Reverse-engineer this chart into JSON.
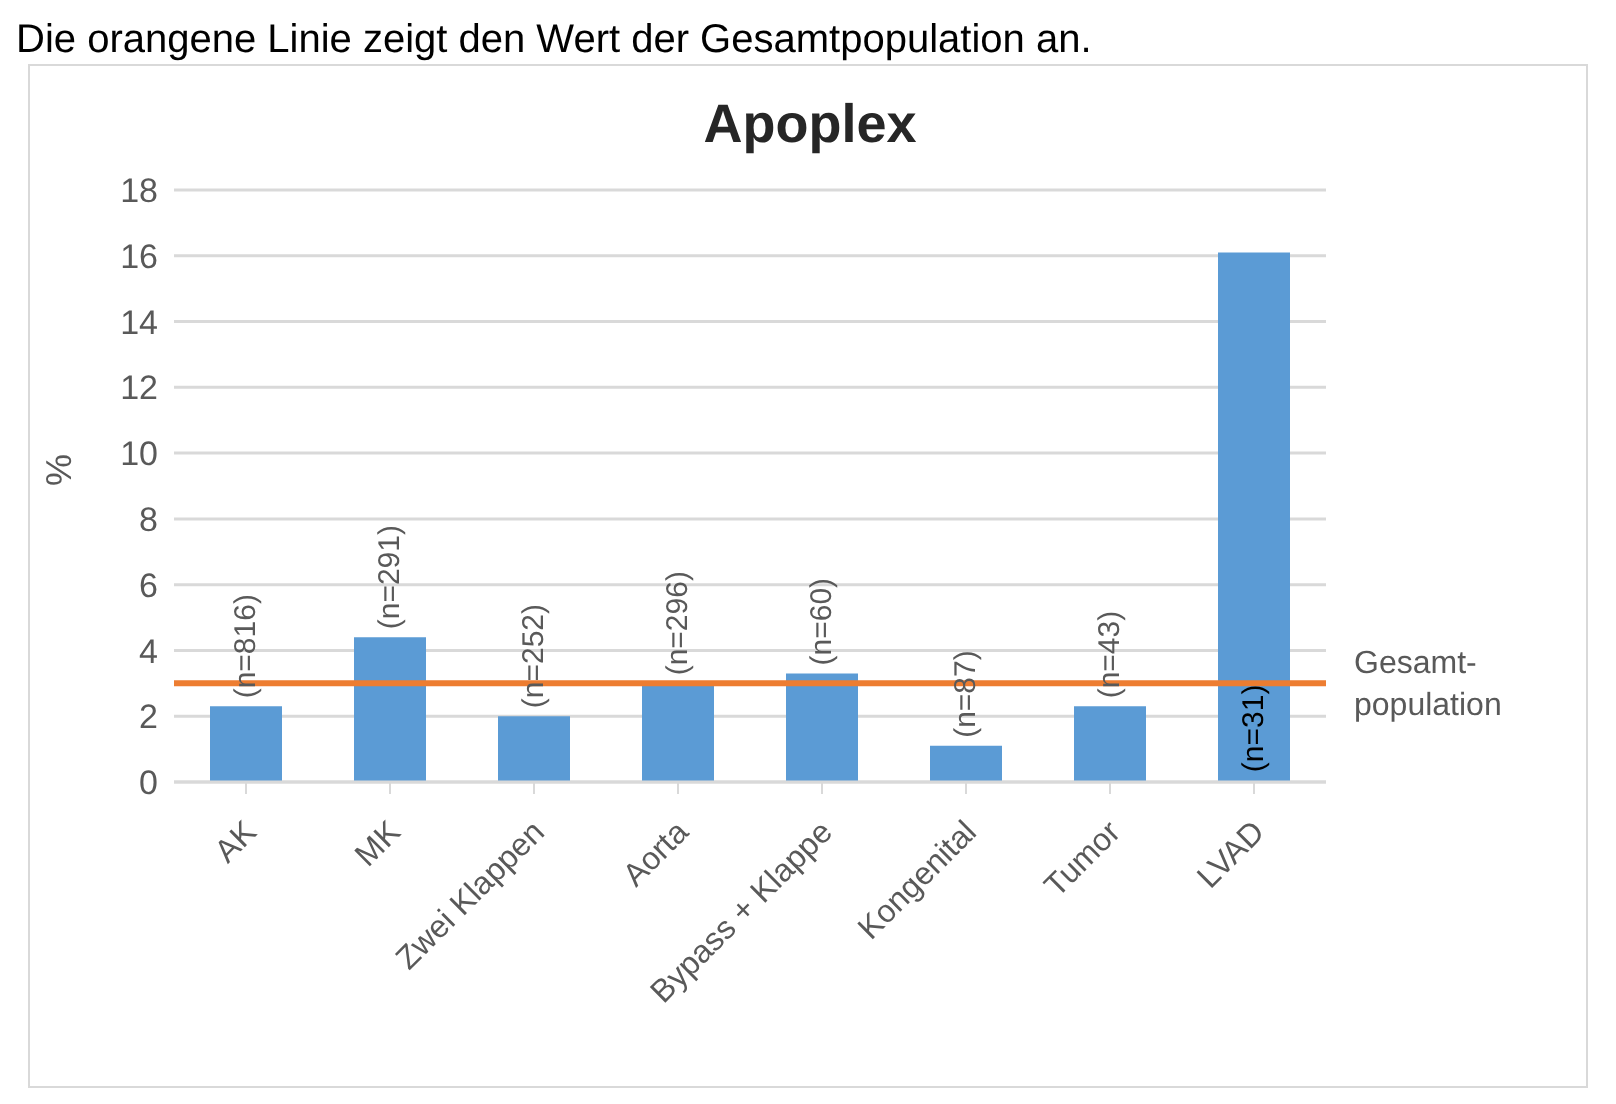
{
  "chart_data": {
    "type": "bar",
    "title": "Apoplex",
    "ylabel": "%",
    "annotations": [
      "Die orangene Linie zeigt den Wert der Gesamtpopulation an.",
      {
        "text": "(n=816)",
        "x": "AK",
        "y": 2.3
      },
      {
        "text": "(n=291)",
        "x": "MK",
        "y": 4.4
      },
      {
        "text": "(n=252)",
        "x": "Zwei Klappen",
        "y": 2.0
      },
      {
        "text": "(n=296)",
        "x": "Aorta",
        "y": 3.0
      },
      {
        "text": "(n=60)",
        "x": "Bypass + Klappe",
        "y": 3.3
      },
      {
        "text": "(n=87)",
        "x": "Kongenital",
        "y": 1.1
      },
      {
        "text": "(n=43)",
        "x": "Tumor",
        "y": 2.3
      },
      {
        "text": "(n=31)",
        "x": "LVAD",
        "y": 0.3
      }
    ],
    "categories": [
      "AK",
      "MK",
      "Zwei Klappen",
      "Aorta",
      "Bypass + Klappe",
      "Kongenital",
      "Tumor",
      "LVAD"
    ],
    "values": [
      2.3,
      4.4,
      2.0,
      3.0,
      3.3,
      1.1,
      2.3,
      16.1
    ],
    "color": "#5b9bd5",
    "ylim": [
      0,
      18
    ],
    "yticks": [
      0,
      2,
      4,
      6,
      8,
      10,
      12,
      14,
      16,
      18
    ],
    "grid": "y",
    "ref_lines": [
      {
        "axis": "y",
        "value": 3.0,
        "label": "Gesamt-population",
        "color": "#ed7d31"
      }
    ]
  }
}
